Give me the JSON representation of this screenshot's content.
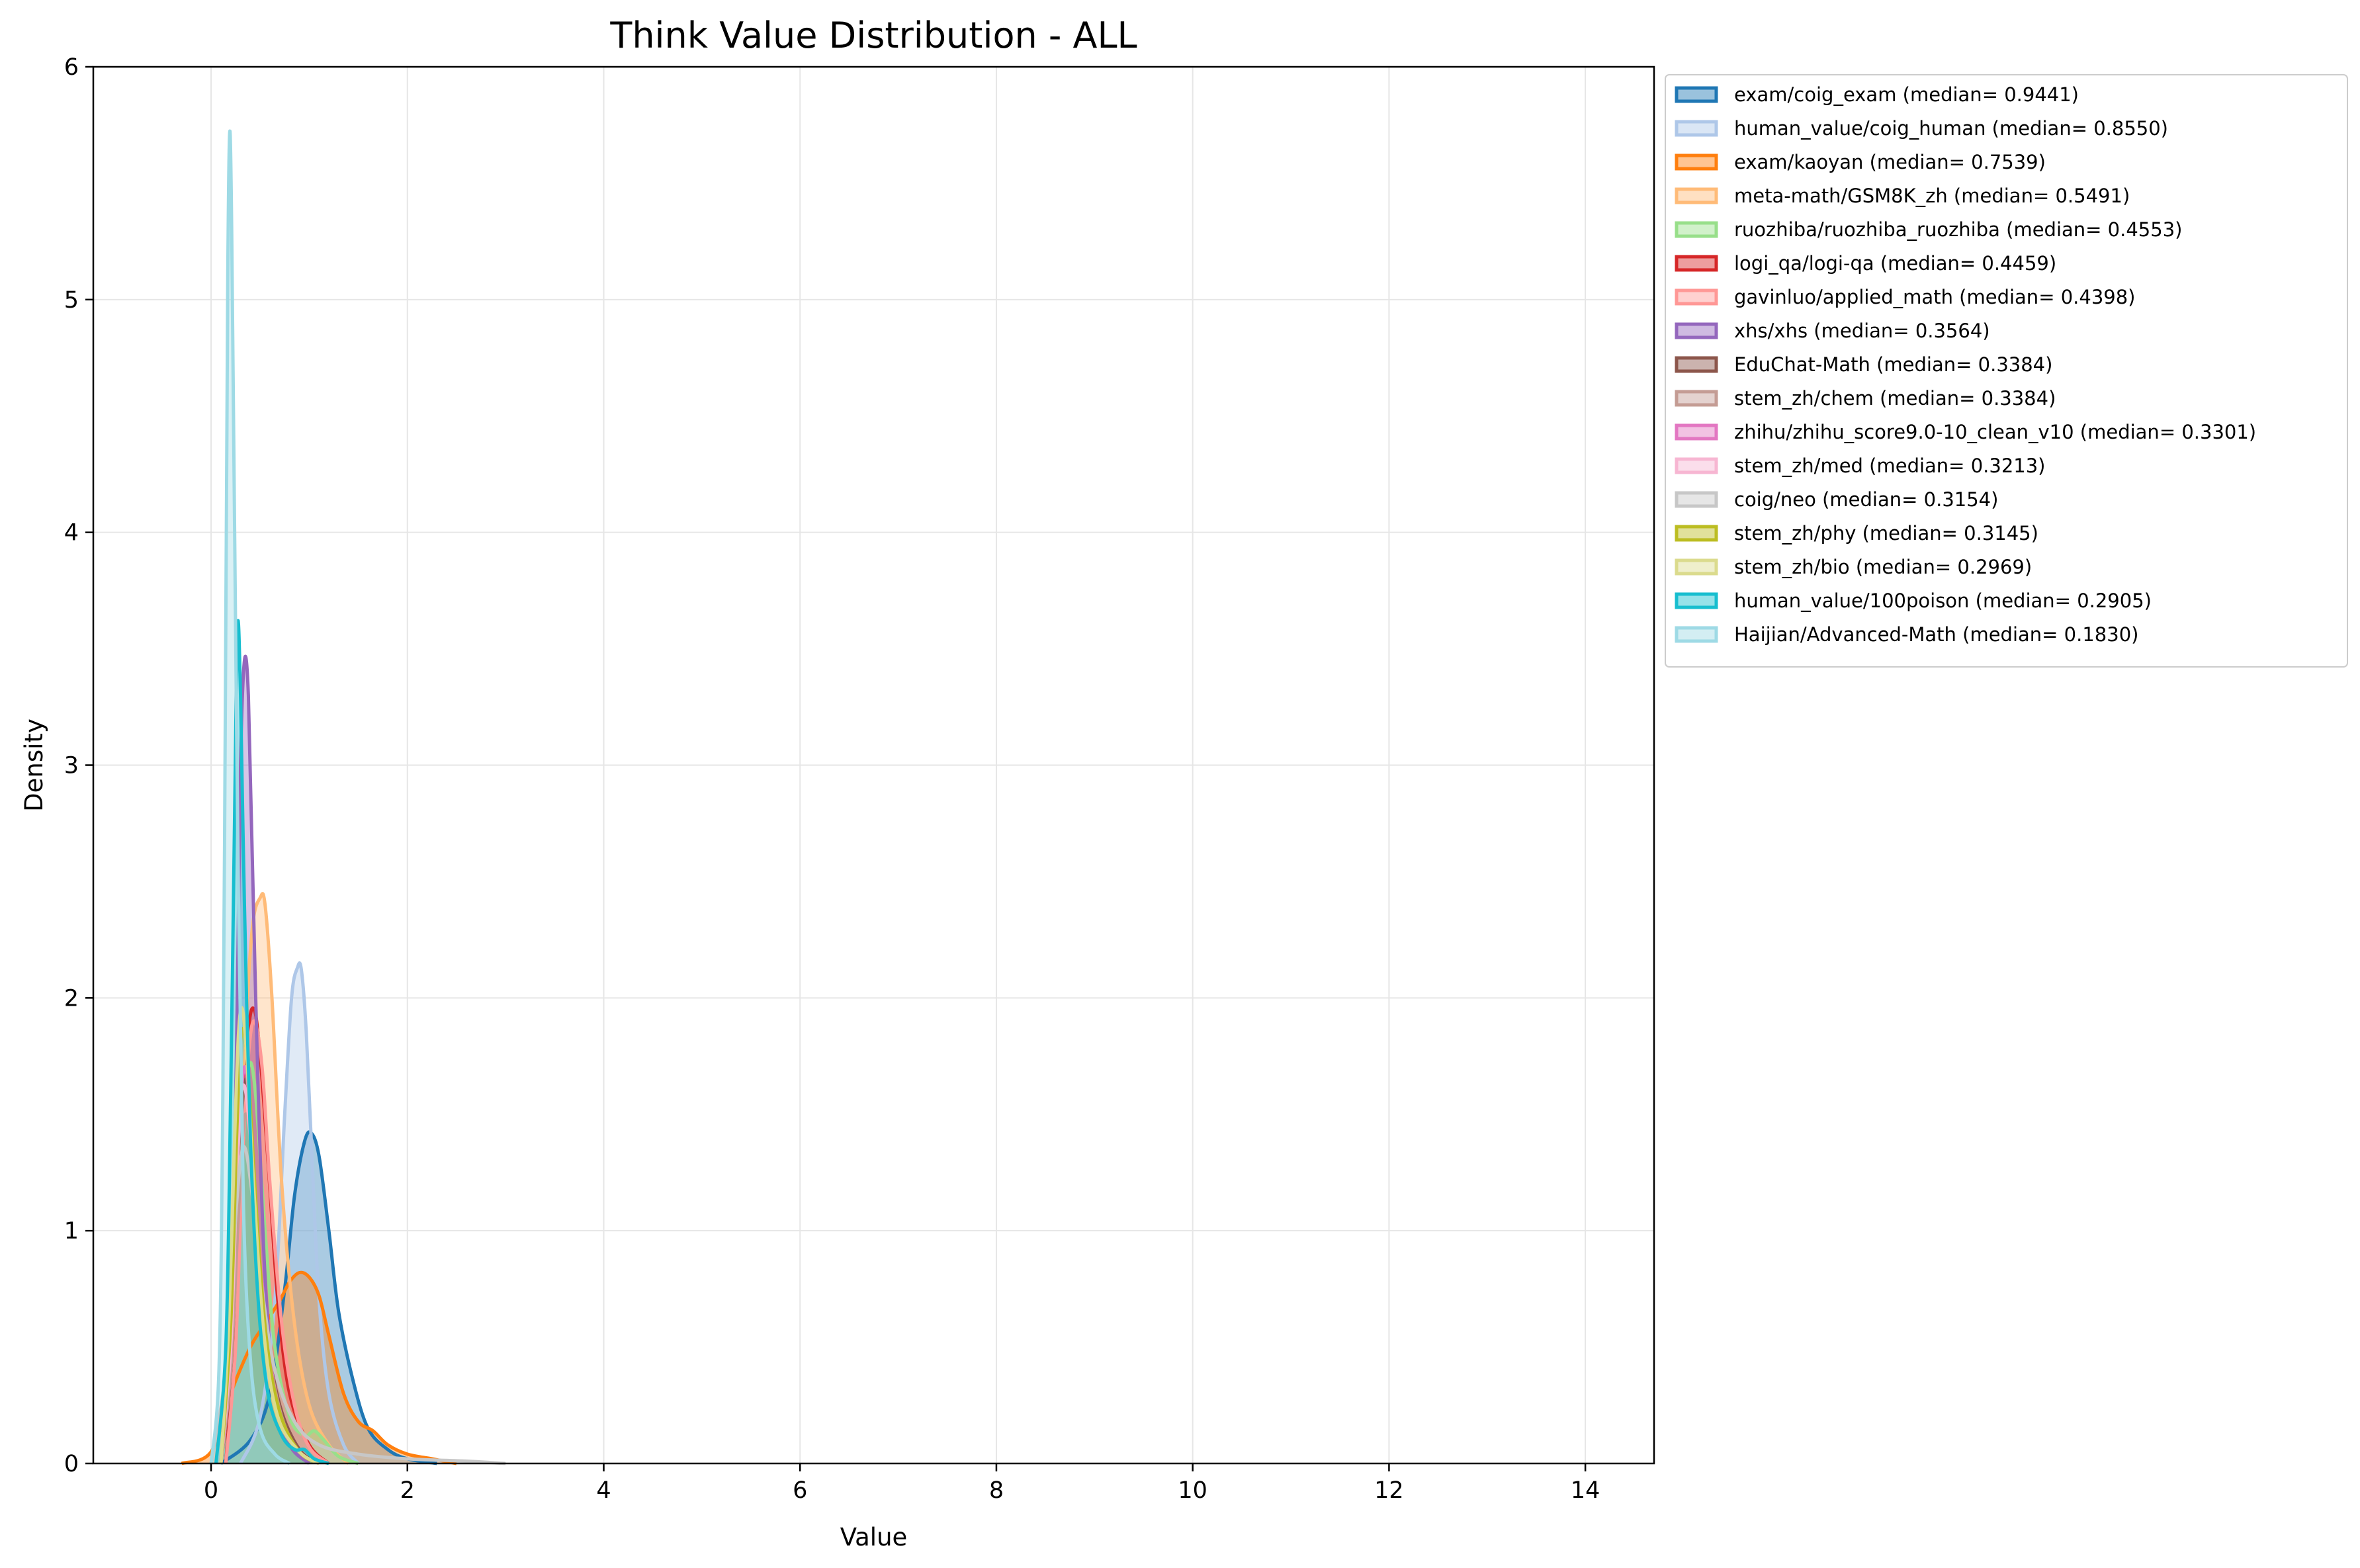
{
  "chart_data": {
    "type": "area",
    "title": "Think Value Distribution - ALL",
    "xlabel": "Value",
    "ylabel": "Density",
    "xlim": [
      -1.2,
      14.7
    ],
    "ylim": [
      0,
      6.0
    ],
    "xticks": [
      0,
      2,
      4,
      6,
      8,
      10,
      12,
      14
    ],
    "yticks": [
      0,
      1,
      2,
      3,
      4,
      5,
      6
    ],
    "grid": true,
    "legend_position": "outside-top-right",
    "series": [
      {
        "name": "exam/coig_exam (median= 0.9441)",
        "color": "#1f77b4",
        "x": [
          0.1,
          0.4,
          0.6,
          0.75,
          0.85,
          0.95,
          1.02,
          1.1,
          1.2,
          1.3,
          1.45,
          1.6,
          1.8,
          2.0,
          2.3
        ],
        "y": [
          0,
          0.1,
          0.3,
          0.75,
          1.15,
          1.38,
          1.42,
          1.32,
          1.0,
          0.65,
          0.35,
          0.15,
          0.06,
          0.02,
          0
        ]
      },
      {
        "name": "human_value/coig_human (median= 0.8550)",
        "color": "#aec7e8",
        "x": [
          0.3,
          0.5,
          0.65,
          0.75,
          0.82,
          0.88,
          0.92,
          0.97,
          1.03,
          1.1,
          1.2,
          1.35,
          1.5
        ],
        "y": [
          0,
          0.2,
          0.7,
          1.5,
          2.0,
          2.13,
          2.12,
          1.85,
          1.3,
          0.7,
          0.3,
          0.08,
          0
        ]
      },
      {
        "name": "exam/kaoyan (median= 0.7539)",
        "color": "#ff7f0e",
        "x": [
          -0.3,
          0.0,
          0.2,
          0.4,
          0.55,
          0.7,
          0.8,
          0.9,
          1.0,
          1.1,
          1.2,
          1.35,
          1.5,
          1.65,
          1.8,
          2.0,
          2.25,
          2.5
        ],
        "y": [
          0,
          0.05,
          0.3,
          0.5,
          0.6,
          0.7,
          0.78,
          0.82,
          0.8,
          0.72,
          0.55,
          0.3,
          0.18,
          0.14,
          0.08,
          0.04,
          0.02,
          0
        ]
      },
      {
        "name": "meta-math/GSM8K_zh (median= 0.5491)",
        "color": "#ffbb78",
        "x": [
          0.1,
          0.25,
          0.35,
          0.42,
          0.5,
          0.55,
          0.62,
          0.72,
          0.85,
          1.0,
          1.2,
          1.4
        ],
        "y": [
          0,
          0.6,
          1.8,
          2.3,
          2.43,
          2.4,
          2.0,
          1.2,
          0.6,
          0.25,
          0.08,
          0
        ]
      },
      {
        "name": "ruozhiba/ruozhiba_ruozhiba (median= 0.4553)",
        "color": "#98df8a",
        "x": [
          0.1,
          0.2,
          0.3,
          0.38,
          0.45,
          0.55,
          0.65,
          0.8,
          0.95,
          1.05,
          1.15,
          1.3,
          1.5
        ],
        "y": [
          0,
          0.5,
          1.3,
          1.7,
          1.6,
          1.0,
          0.5,
          0.2,
          0.12,
          0.14,
          0.1,
          0.03,
          0
        ]
      },
      {
        "name": "logi_qa/logi-qa (median= 0.4459)",
        "color": "#d62728",
        "x": [
          0.15,
          0.25,
          0.32,
          0.38,
          0.44,
          0.5,
          0.58,
          0.68,
          0.8,
          1.0,
          1.2
        ],
        "y": [
          0,
          0.6,
          1.3,
          1.85,
          1.95,
          1.75,
          1.3,
          0.7,
          0.3,
          0.08,
          0
        ]
      },
      {
        "name": "gavinluo/applied_math (median= 0.4398)",
        "color": "#ff9896",
        "x": [
          0.15,
          0.25,
          0.32,
          0.38,
          0.44,
          0.52,
          0.6,
          0.72,
          0.85,
          1.0,
          1.2
        ],
        "y": [
          0,
          0.5,
          1.3,
          1.75,
          1.9,
          1.7,
          1.2,
          0.6,
          0.25,
          0.07,
          0
        ]
      },
      {
        "name": "xhs/xhs (median= 0.3564)",
        "color": "#9467bd",
        "x": [
          0.1,
          0.2,
          0.26,
          0.3,
          0.34,
          0.38,
          0.42,
          0.48,
          0.55,
          0.65,
          0.8,
          1.0
        ],
        "y": [
          0,
          0.6,
          1.8,
          3.0,
          3.45,
          3.3,
          2.6,
          1.6,
          0.8,
          0.3,
          0.08,
          0
        ]
      },
      {
        "name": "EduChat-Math (median= 0.3384)",
        "color": "#8c564b",
        "x": [
          0.1,
          0.2,
          0.27,
          0.32,
          0.36,
          0.4,
          0.46,
          0.55,
          0.7,
          0.9,
          1.1
        ],
        "y": [
          0,
          0.4,
          1.1,
          1.55,
          1.65,
          1.5,
          1.1,
          0.6,
          0.25,
          0.06,
          0
        ]
      },
      {
        "name": "stem_zh/chem (median= 0.3384)",
        "color": "#c49c94",
        "x": [
          0.1,
          0.2,
          0.27,
          0.32,
          0.36,
          0.41,
          0.48,
          0.58,
          0.72,
          0.9,
          1.1
        ],
        "y": [
          0,
          0.4,
          1.0,
          1.4,
          1.5,
          1.35,
          0.95,
          0.5,
          0.2,
          0.05,
          0
        ]
      },
      {
        "name": "zhihu/zhihu_score9.0-10_clean_v10 (median= 0.3301)",
        "color": "#e377c2",
        "x": [
          0.1,
          0.2,
          0.26,
          0.31,
          0.35,
          0.4,
          0.47,
          0.57,
          0.7,
          0.9,
          1.1
        ],
        "y": [
          0,
          0.5,
          1.2,
          1.6,
          1.7,
          1.5,
          1.05,
          0.55,
          0.22,
          0.05,
          0
        ]
      },
      {
        "name": "stem_zh/med (median= 0.3213)",
        "color": "#f7b6d2",
        "x": [
          0.1,
          0.2,
          0.26,
          0.3,
          0.34,
          0.39,
          0.46,
          0.56,
          0.7,
          0.9,
          1.1
        ],
        "y": [
          0,
          0.5,
          1.2,
          1.55,
          1.62,
          1.45,
          1.0,
          0.5,
          0.2,
          0.05,
          0
        ]
      },
      {
        "name": "coig/neo (median= 0.3154)",
        "color": "#c7c7c7",
        "x": [
          0.0,
          0.15,
          0.24,
          0.3,
          0.35,
          0.42,
          0.52,
          0.65,
          0.85,
          1.1,
          1.5,
          2.0,
          2.6,
          3.0
        ],
        "y": [
          0,
          0.4,
          1.0,
          1.3,
          1.35,
          1.15,
          0.75,
          0.4,
          0.18,
          0.08,
          0.04,
          0.02,
          0.01,
          0
        ]
      },
      {
        "name": "stem_zh/phy (median= 0.3145)",
        "color": "#bcbd22",
        "x": [
          0.1,
          0.2,
          0.26,
          0.3,
          0.34,
          0.39,
          0.46,
          0.56,
          0.7,
          0.9,
          1.1
        ],
        "y": [
          0,
          0.6,
          1.4,
          1.8,
          1.85,
          1.6,
          1.1,
          0.55,
          0.22,
          0.05,
          0
        ]
      },
      {
        "name": "stem_zh/bio (median= 0.2969)",
        "color": "#dbdb8d",
        "x": [
          0.1,
          0.18,
          0.24,
          0.28,
          0.32,
          0.37,
          0.44,
          0.54,
          0.68,
          0.9,
          1.1
        ],
        "y": [
          0,
          0.6,
          1.4,
          1.85,
          1.95,
          1.7,
          1.15,
          0.55,
          0.2,
          0.05,
          0
        ]
      },
      {
        "name": "human_value/100poison (median= 0.2905)",
        "color": "#17becf",
        "x": [
          0.05,
          0.15,
          0.2,
          0.24,
          0.27,
          0.3,
          0.34,
          0.4,
          0.48,
          0.58,
          0.72,
          0.85,
          0.95,
          1.05,
          1.2
        ],
        "y": [
          0,
          0.5,
          1.6,
          2.8,
          3.6,
          3.3,
          2.4,
          1.4,
          0.7,
          0.3,
          0.12,
          0.06,
          0.06,
          0.02,
          0
        ]
      },
      {
        "name": "Haijian/Advanced-Math (median= 0.1830)",
        "color": "#9edae5",
        "x": [
          0.0,
          0.08,
          0.12,
          0.15,
          0.17,
          0.19,
          0.21,
          0.24,
          0.28,
          0.33,
          0.4,
          0.5,
          0.65,
          0.8
        ],
        "y": [
          0,
          0.4,
          1.6,
          3.6,
          5.1,
          5.72,
          5.3,
          4.0,
          2.4,
          1.1,
          0.45,
          0.15,
          0.04,
          0
        ]
      }
    ]
  }
}
